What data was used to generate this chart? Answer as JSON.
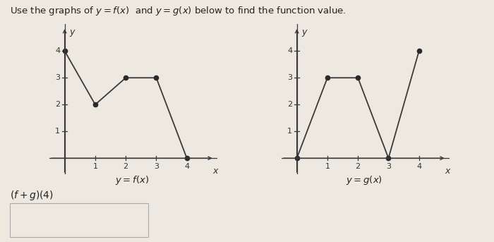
{
  "title": "Use the graphs of $y = f(x)$  and $y = g(x)$ below to find the function value.",
  "f_x": [
    0,
    1,
    2,
    3,
    4
  ],
  "f_y": [
    4,
    2,
    3,
    3,
    0
  ],
  "g_x": [
    0,
    1,
    2,
    3,
    4
  ],
  "g_y": [
    0,
    3,
    3,
    0,
    4
  ],
  "f_label": "$y = f(x)$",
  "g_label": "$y = g(x)$",
  "question_label": "$(f + g)(4)$",
  "line_color": "#3a3a3a",
  "dot_color": "#2a2a2a",
  "bg_color": "#ede8e0",
  "axis_color": "#3a3a3a",
  "xlim": [
    -0.5,
    5.0
  ],
  "ylim": [
    -0.6,
    5.0
  ],
  "xticks": [
    1,
    2,
    3,
    4
  ],
  "yticks": [
    1,
    2,
    3,
    4
  ],
  "tick_fontsize": 8,
  "label_fontsize": 9
}
